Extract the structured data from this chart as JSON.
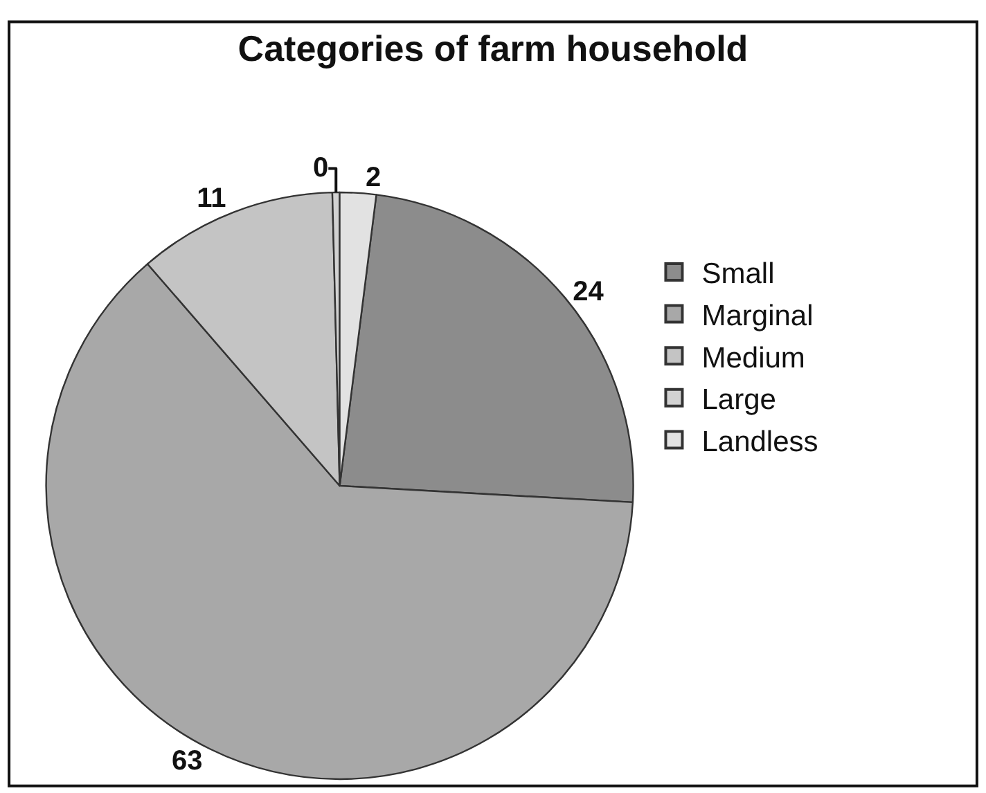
{
  "chart_data": {
    "type": "pie",
    "title": "Categories of farm household",
    "categories": [
      "Small",
      "Marginal",
      "Medium",
      "Large",
      "Landless"
    ],
    "values": [
      24,
      63,
      11,
      0.4,
      2
    ],
    "value_labels": [
      "24",
      "63",
      "11",
      "0",
      "2"
    ],
    "colors": [
      "#8c8c8c",
      "#a8a8a8",
      "#c4c4c4",
      "#d2d2d2",
      "#e2e2e2"
    ],
    "legend": "right"
  }
}
